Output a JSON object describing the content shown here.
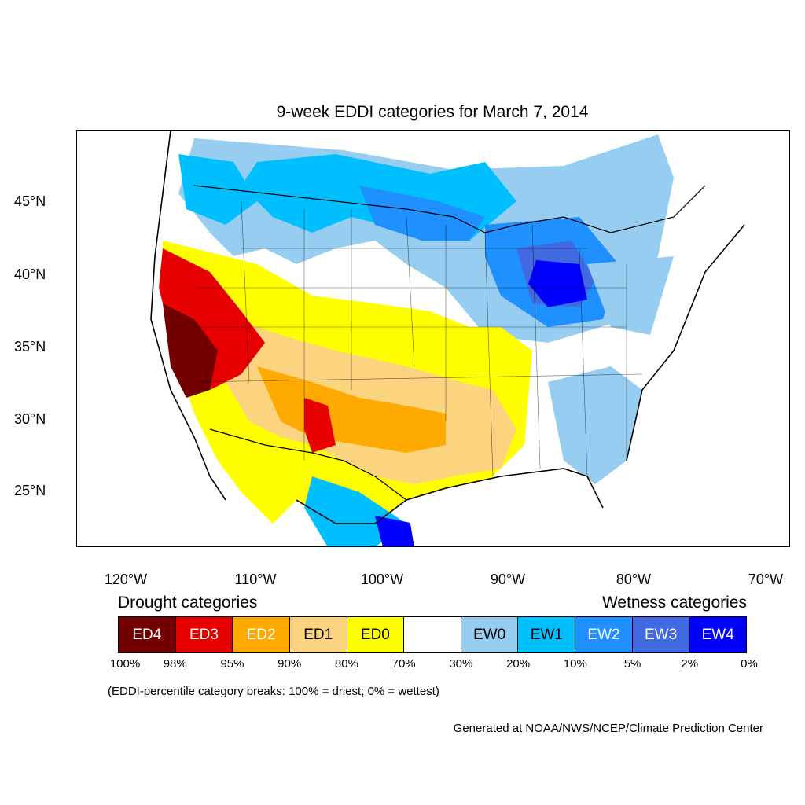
{
  "title": "9-week EDDI categories for March 7, 2014",
  "lat_labels": [
    "45°N",
    "40°N",
    "35°N",
    "30°N",
    "25°N"
  ],
  "lon_labels": [
    "120°W",
    "110°W",
    "100°W",
    "90°W",
    "80°W",
    "70°W"
  ],
  "legend": {
    "drought_heading": "Drought categories",
    "wetness_heading": "Wetness categories",
    "categories": [
      {
        "label": "ED4",
        "color": "#730000",
        "text_color": "#ffffff"
      },
      {
        "label": "ED3",
        "color": "#e60000",
        "text_color": "#ffffff"
      },
      {
        "label": "ED2",
        "color": "#ffaa00",
        "text_color": "#ffffff"
      },
      {
        "label": "ED1",
        "color": "#fcd37f",
        "text_color": "#000000"
      },
      {
        "label": "ED0",
        "color": "#ffff00",
        "text_color": "#000000"
      },
      {
        "label": "",
        "color": "#ffffff",
        "text_color": "#000000"
      },
      {
        "label": "EW0",
        "color": "#96cdf0",
        "text_color": "#000000"
      },
      {
        "label": "EW1",
        "color": "#00bfff",
        "text_color": "#000000"
      },
      {
        "label": "EW2",
        "color": "#1e90ff",
        "text_color": "#ffffff"
      },
      {
        "label": "EW3",
        "color": "#4169e1",
        "text_color": "#ffffff"
      },
      {
        "label": "EW4",
        "color": "#0000ff",
        "text_color": "#ffffff"
      }
    ],
    "breaks": [
      "100%",
      "98%",
      "95%",
      "90%",
      "80%",
      "70%",
      "30%",
      "20%",
      "10%",
      "5%",
      "2%",
      "0%"
    ]
  },
  "note": "(EDDI-percentile category breaks: 100% = driest; 0% = wettest)",
  "credit": "Generated at NOAA/NWS/NCEP/Climate Prediction Center"
}
